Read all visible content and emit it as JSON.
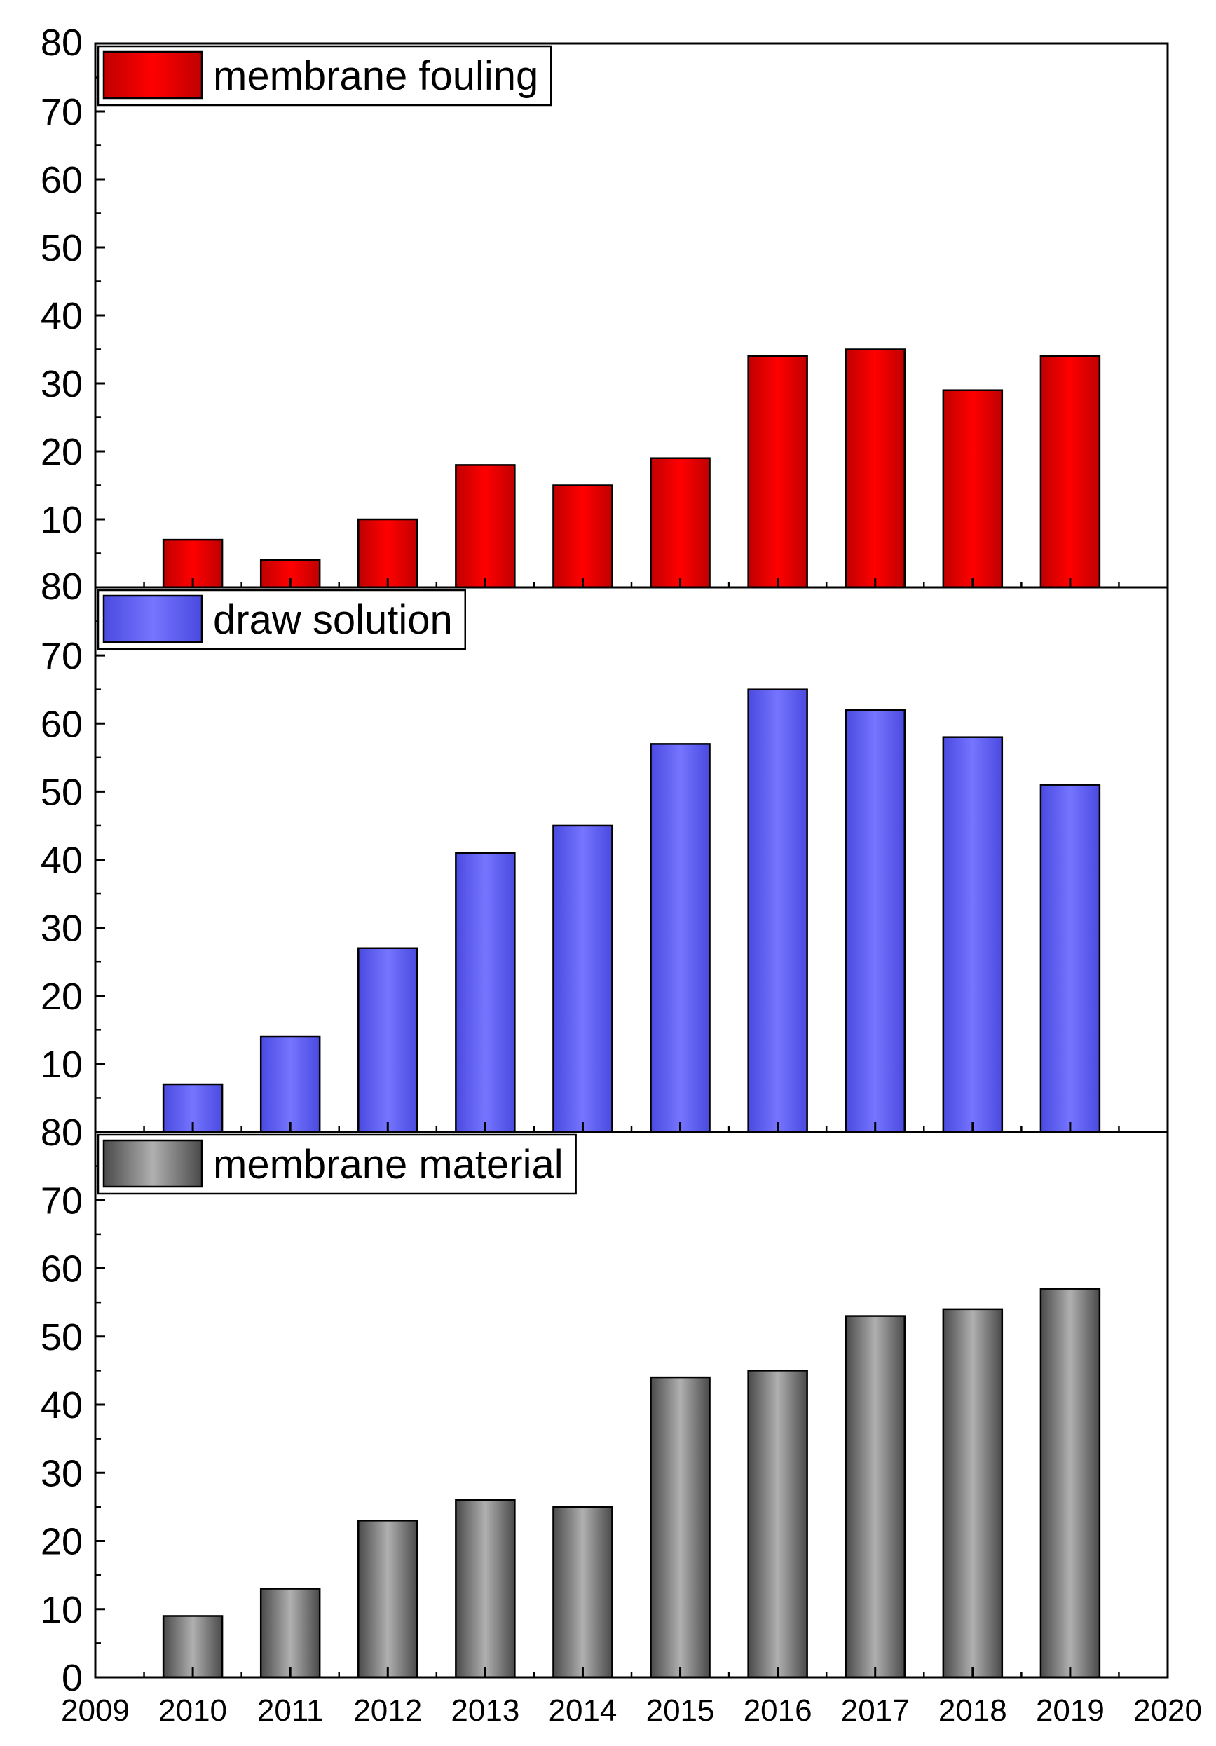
{
  "chart_data": [
    {
      "type": "bar",
      "series": [
        {
          "name": "membrane fouling",
          "color": "#ff0000",
          "values": [
            7,
            4,
            10,
            18,
            15,
            19,
            34,
            35,
            29,
            34
          ]
        }
      ],
      "x": [
        2010,
        2011,
        2012,
        2013,
        2014,
        2015,
        2016,
        2017,
        2018,
        2019
      ],
      "xlim": [
        2009,
        2020
      ],
      "ylim": [
        0,
        80
      ],
      "yticks": [
        "10",
        "20",
        "30",
        "40",
        "50",
        "60",
        "70",
        "80"
      ],
      "legend": "top-left"
    },
    {
      "type": "bar",
      "series": [
        {
          "name": "draw solution",
          "color": "#6f6ff5",
          "values": [
            7,
            14,
            27,
            41,
            45,
            57,
            65,
            62,
            58,
            51
          ]
        }
      ],
      "x": [
        2010,
        2011,
        2012,
        2013,
        2014,
        2015,
        2016,
        2017,
        2018,
        2019
      ],
      "xlim": [
        2009,
        2020
      ],
      "ylim": [
        0,
        80
      ],
      "yticks": [
        "10",
        "20",
        "30",
        "40",
        "50",
        "60",
        "70",
        "80"
      ],
      "legend": "top-left"
    },
    {
      "type": "bar",
      "series": [
        {
          "name": "membrane material",
          "color": "#9a9a9a",
          "values": [
            9,
            13,
            23,
            26,
            25,
            44,
            45,
            53,
            54,
            57
          ]
        }
      ],
      "x": [
        2010,
        2011,
        2012,
        2013,
        2014,
        2015,
        2016,
        2017,
        2018,
        2019
      ],
      "xlim": [
        2009,
        2020
      ],
      "ylim": [
        0,
        80
      ],
      "yticks": [
        "0",
        "10",
        "20",
        "30",
        "40",
        "50",
        "60",
        "70",
        "80"
      ],
      "xticks": [
        "2009",
        "2010",
        "2011",
        "2012",
        "2013",
        "2014",
        "2015",
        "2016",
        "2017",
        "2018",
        "2019",
        "2020"
      ],
      "legend": "top-left"
    }
  ]
}
